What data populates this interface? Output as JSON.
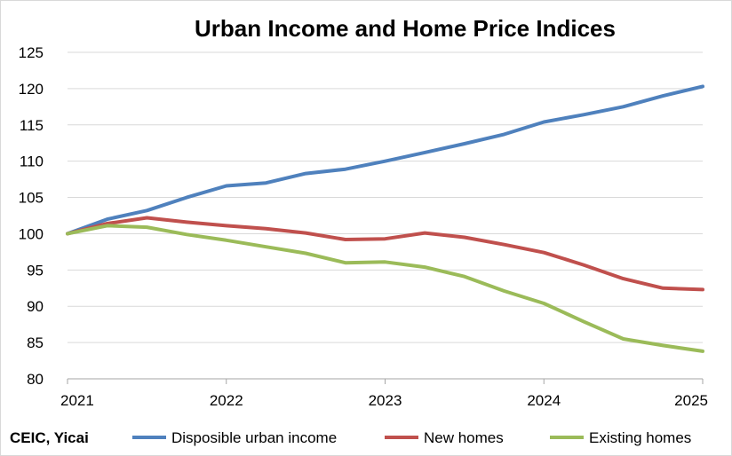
{
  "chart_data": {
    "type": "line",
    "title": "Urban Income and Home Price Indices",
    "source": "CEIC, Yicai",
    "ylim": [
      80,
      125
    ],
    "yticks": [
      80,
      85,
      90,
      95,
      100,
      105,
      110,
      115,
      120,
      125
    ],
    "xlim": [
      2021,
      2025
    ],
    "xticks": [
      2021,
      2022,
      2023,
      2024,
      2025
    ],
    "grid": true,
    "legend": "bottom",
    "x": [
      2021,
      2021.25,
      2021.5,
      2021.75,
      2022,
      2022.25,
      2022.5,
      2022.75,
      2023,
      2023.25,
      2023.5,
      2023.75,
      2024,
      2024.25,
      2024.5,
      2024.75,
      2025
    ],
    "series": [
      {
        "name": "Disposible urban income",
        "color": "#4f81bd",
        "values": [
          100,
          102,
          103.2,
          105,
          106.6,
          107,
          108.3,
          108.9,
          110,
          111.2,
          112.4,
          113.7,
          115.4,
          116.4,
          117.5,
          119,
          120.3
        ]
      },
      {
        "name": "New homes",
        "color": "#c0504d",
        "values": [
          100,
          101.4,
          102.2,
          101.6,
          101.1,
          100.7,
          100.1,
          99.2,
          99.3,
          100.1,
          99.5,
          98.5,
          97.4,
          95.7,
          93.8,
          92.5,
          92.3
        ]
      },
      {
        "name": "Existing homes",
        "color": "#9bbb59",
        "values": [
          100,
          101.1,
          100.9,
          99.9,
          99.1,
          98.2,
          97.3,
          96,
          96.1,
          95.4,
          94.1,
          92.1,
          90.4,
          87.9,
          85.5,
          84.6,
          83.8
        ]
      }
    ]
  }
}
